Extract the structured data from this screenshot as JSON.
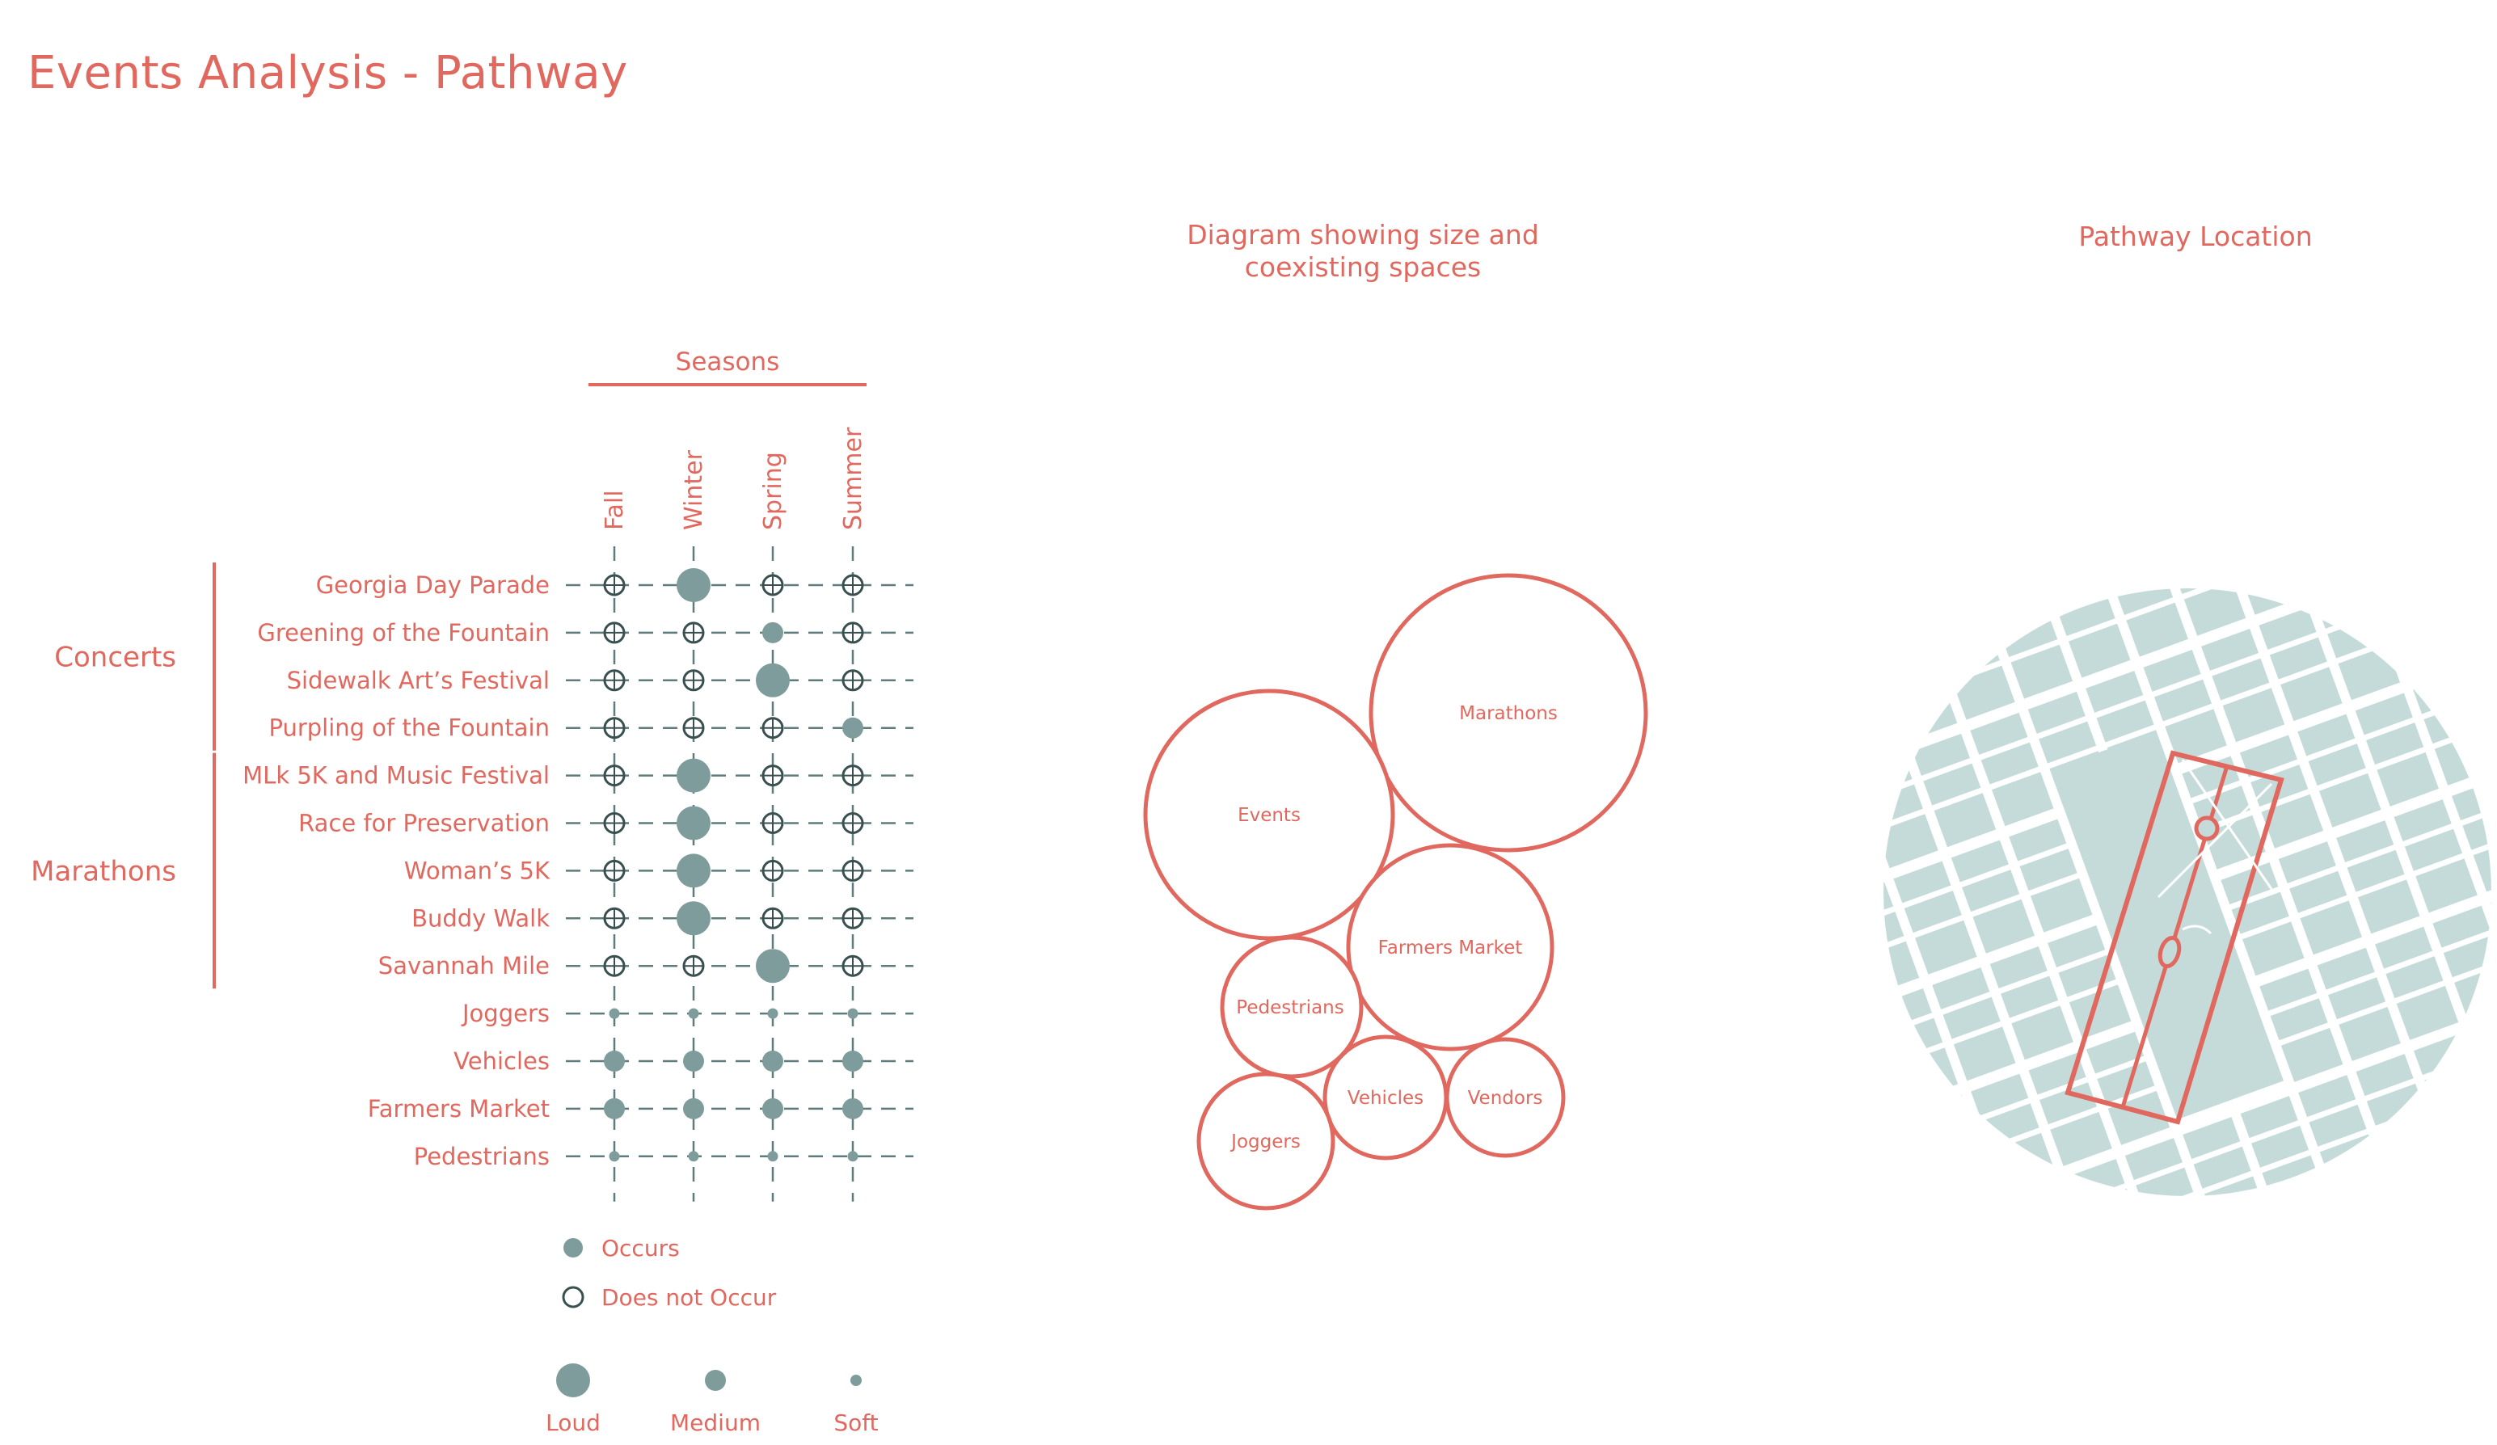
{
  "title": "Events Analysis - Pathway",
  "colors": {
    "accent": "#e0685e",
    "dot": "#7f9c9c",
    "grid": "#5f7b7b",
    "map_block": "#c4dbda",
    "map_street": "#ffffff"
  },
  "matrix": {
    "seasons_header": "Seasons",
    "seasons": [
      "Fall",
      "Winter",
      "Spring",
      "Summer"
    ],
    "groups": [
      {
        "label": "Concerts",
        "rows": [
          0,
          3
        ]
      },
      {
        "label": "Marathons",
        "rows": [
          4,
          8
        ]
      }
    ],
    "rows": [
      {
        "label": "Georgia Day Parade",
        "cells": [
          "none",
          "loud",
          "none",
          "none"
        ]
      },
      {
        "label": "Greening of the Fountain",
        "cells": [
          "none",
          "none",
          "medium",
          "none"
        ]
      },
      {
        "label": "Sidewalk Art’s Festival",
        "cells": [
          "none",
          "none",
          "loud",
          "none"
        ]
      },
      {
        "label": "Purpling of the Fountain",
        "cells": [
          "none",
          "none",
          "none",
          "medium"
        ]
      },
      {
        "label": "MLk 5K and Music Festival",
        "cells": [
          "none",
          "loud",
          "none",
          "none"
        ]
      },
      {
        "label": "Race for Preservation",
        "cells": [
          "none",
          "loud",
          "none",
          "none"
        ]
      },
      {
        "label": "Woman’s 5K",
        "cells": [
          "none",
          "loud",
          "none",
          "none"
        ]
      },
      {
        "label": "Buddy Walk",
        "cells": [
          "none",
          "loud",
          "none",
          "none"
        ]
      },
      {
        "label": "Savannah Mile",
        "cells": [
          "none",
          "none",
          "loud",
          "none"
        ]
      },
      {
        "label": "Joggers",
        "cells": [
          "soft",
          "soft",
          "soft",
          "soft"
        ]
      },
      {
        "label": "Vehicles",
        "cells": [
          "medium",
          "medium",
          "medium",
          "medium"
        ]
      },
      {
        "label": "Farmers Market",
        "cells": [
          "medium",
          "medium",
          "medium",
          "medium"
        ]
      },
      {
        "label": "Pedestrians",
        "cells": [
          "soft",
          "soft",
          "soft",
          "soft"
        ]
      }
    ]
  },
  "legend": {
    "occurs": "Occurs",
    "does_not_occur": "Does not Occur",
    "loud": "Loud",
    "medium": "Medium",
    "soft": "Soft"
  },
  "bubble_diagram": {
    "title_line1": "Diagram showing size and",
    "title_line2": "coexisting spaces",
    "bubbles": [
      "Marathons",
      "Events",
      "Farmers Market",
      "Pedestrians",
      "Vehicles",
      "Vendors",
      "Joggers"
    ]
  },
  "location_map": {
    "title": "Pathway Location"
  }
}
